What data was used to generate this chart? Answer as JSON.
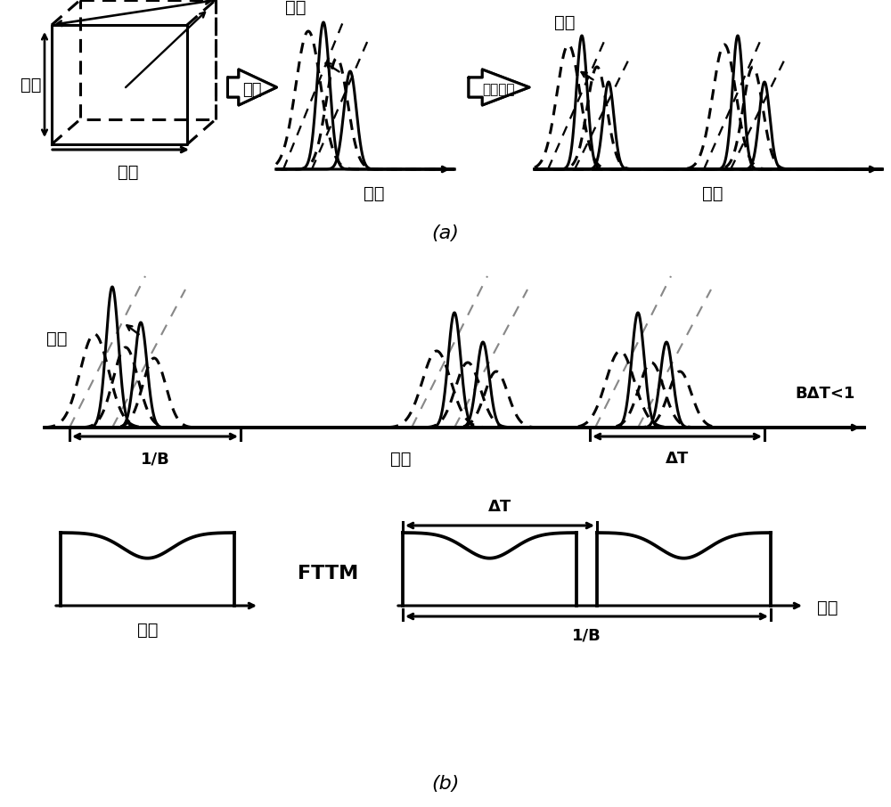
{
  "bg_color": "#ffffff",
  "label_a": "(a)",
  "label_b": "(b)",
  "text_bozhang": "波长",
  "text_shijian": "时间",
  "text_tiaozhi": "调制",
  "text_putaosuxing": "频谱塑形",
  "text_fttm": "FTTM",
  "text_1B": "1/B",
  "text_deltaT": "ΔT",
  "text_BAT": "BΔT<1",
  "black": "#000000",
  "lw": 2.2,
  "dlw": 1.8
}
